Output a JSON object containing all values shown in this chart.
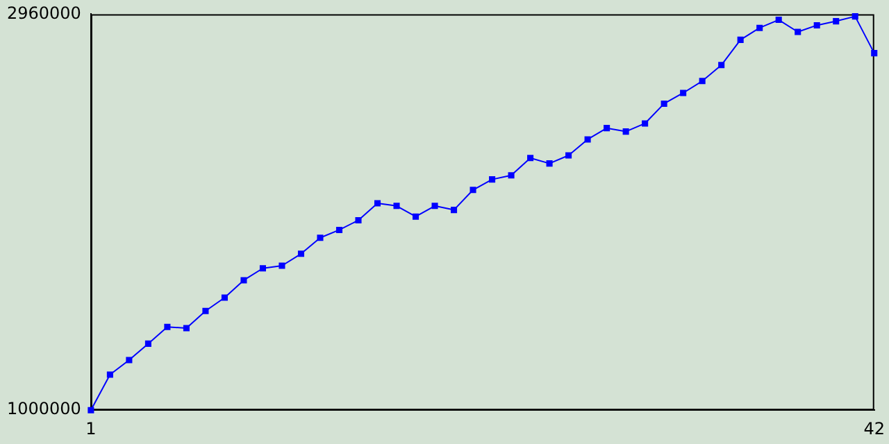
{
  "chart_data": {
    "type": "line",
    "x": [
      1,
      2,
      3,
      4,
      5,
      6,
      7,
      8,
      9,
      10,
      11,
      12,
      13,
      14,
      15,
      16,
      17,
      18,
      19,
      20,
      21,
      22,
      23,
      24,
      25,
      26,
      27,
      28,
      29,
      30,
      31,
      32,
      33,
      34,
      35,
      36,
      37,
      38,
      39,
      40,
      41,
      42
    ],
    "series": [
      {
        "color": "#0000ff",
        "values": [
          1000000,
          1176000,
          1248000,
          1329000,
          1412000,
          1406000,
          1491000,
          1557000,
          1643000,
          1702000,
          1715000,
          1774000,
          1853000,
          1892000,
          1940000,
          2024000,
          2011000,
          1958000,
          2011000,
          1991000,
          2090000,
          2142000,
          2162000,
          2248000,
          2221000,
          2261000,
          2340000,
          2396000,
          2379000,
          2419000,
          2517000,
          2570000,
          2629000,
          2708000,
          2833000,
          2892000,
          2932000,
          2872000,
          2905000,
          2925000,
          2949000,
          2767000
        ]
      }
    ],
    "xlim": [
      1,
      42
    ],
    "xticks": [
      1,
      42
    ],
    "ylim": [
      1000000,
      2960000
    ],
    "yticks": [
      1000000,
      2960000
    ],
    "grid": false,
    "legend": false,
    "marker": "square",
    "line_style": "solid"
  }
}
